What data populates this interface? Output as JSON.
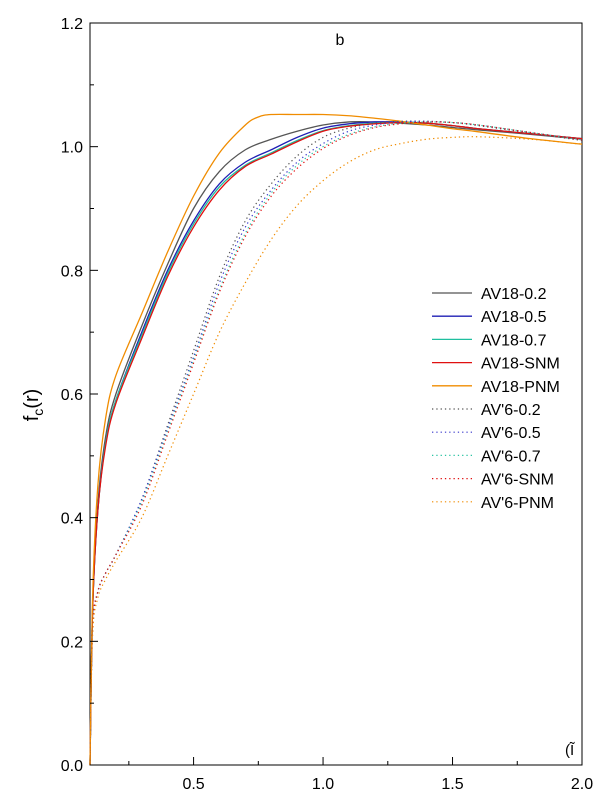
{
  "chart_data": {
    "type": "line",
    "panel_label": "b",
    "xlabel": "(Ĩ",
    "ylabel": "f_c(r)",
    "xlim": [
      0.1,
      2.0
    ],
    "ylim": [
      0.0,
      1.2
    ],
    "x_ticks": [
      0.5,
      1.0,
      1.5,
      2.0
    ],
    "x_tick_labels": [
      "0.5",
      "1.0",
      "1.5",
      "2.0"
    ],
    "y_ticks": [
      0.0,
      0.2,
      0.4,
      0.6,
      0.8,
      1.0,
      1.2
    ],
    "y_tick_labels": [
      "0.0",
      "0.2",
      "0.4",
      "0.6",
      "0.8",
      "1.0",
      "1.2"
    ],
    "legend_position": "center-right",
    "series": [
      {
        "name": "AV18-0.2",
        "color": "#555555",
        "style": "solid",
        "x": [
          0.1,
          0.11,
          0.13,
          0.16,
          0.2,
          0.3,
          0.4,
          0.5,
          0.6,
          0.7,
          0.8,
          0.9,
          1.0,
          1.1,
          1.2,
          1.3,
          1.4,
          1.5,
          1.6,
          1.8,
          2.0
        ],
        "y": [
          0.0,
          0.25,
          0.42,
          0.53,
          0.6,
          0.71,
          0.81,
          0.9,
          0.96,
          0.995,
          1.012,
          1.025,
          1.035,
          1.04,
          1.04,
          1.038,
          1.035,
          1.031,
          1.027,
          1.02,
          1.012
        ]
      },
      {
        "name": "AV18-0.5",
        "color": "#1f1fb4",
        "style": "solid",
        "x": [
          0.1,
          0.11,
          0.13,
          0.16,
          0.2,
          0.3,
          0.4,
          0.5,
          0.6,
          0.7,
          0.8,
          0.9,
          1.0,
          1.1,
          1.2,
          1.3,
          1.4,
          1.5,
          1.6,
          1.8,
          2.0
        ],
        "y": [
          0.0,
          0.25,
          0.41,
          0.52,
          0.59,
          0.7,
          0.8,
          0.88,
          0.94,
          0.975,
          0.995,
          1.015,
          1.03,
          1.037,
          1.04,
          1.04,
          1.038,
          1.034,
          1.029,
          1.021,
          1.013
        ]
      },
      {
        "name": "AV18-0.7",
        "color": "#1fbf9f",
        "style": "solid",
        "x": [
          0.1,
          0.11,
          0.13,
          0.16,
          0.2,
          0.3,
          0.4,
          0.5,
          0.6,
          0.7,
          0.8,
          0.9,
          1.0,
          1.1,
          1.2,
          1.3,
          1.4,
          1.5,
          1.6,
          1.8,
          2.0
        ],
        "y": [
          0.0,
          0.25,
          0.41,
          0.52,
          0.59,
          0.695,
          0.795,
          0.875,
          0.935,
          0.97,
          0.99,
          1.01,
          1.026,
          1.034,
          1.038,
          1.039,
          1.038,
          1.034,
          1.029,
          1.021,
          1.013
        ]
      },
      {
        "name": "AV18-SNM",
        "color": "#e01010",
        "style": "solid",
        "x": [
          0.1,
          0.11,
          0.13,
          0.16,
          0.2,
          0.3,
          0.4,
          0.5,
          0.6,
          0.7,
          0.8,
          0.9,
          1.0,
          1.1,
          1.2,
          1.3,
          1.4,
          1.5,
          1.6,
          1.8,
          2.0
        ],
        "y": [
          0.0,
          0.25,
          0.41,
          0.515,
          0.585,
          0.69,
          0.79,
          0.87,
          0.93,
          0.968,
          0.988,
          1.008,
          1.025,
          1.033,
          1.037,
          1.039,
          1.038,
          1.034,
          1.029,
          1.021,
          1.013
        ]
      },
      {
        "name": "AV18-PNM",
        "color": "#f08c00",
        "style": "solid",
        "x": [
          0.1,
          0.11,
          0.13,
          0.16,
          0.2,
          0.3,
          0.4,
          0.5,
          0.6,
          0.7,
          0.75,
          0.8,
          0.9,
          1.0,
          1.1,
          1.2,
          1.3,
          1.4,
          1.5,
          1.6,
          1.8,
          2.0
        ],
        "y": [
          0.0,
          0.27,
          0.45,
          0.56,
          0.63,
          0.73,
          0.83,
          0.92,
          0.99,
          1.035,
          1.048,
          1.052,
          1.052,
          1.052,
          1.05,
          1.046,
          1.041,
          1.035,
          1.029,
          1.024,
          1.013,
          1.004
        ]
      },
      {
        "name": "AV'6-0.2",
        "color": "#555555",
        "style": "dotted",
        "x": [
          0.1,
          0.11,
          0.13,
          0.16,
          0.2,
          0.3,
          0.4,
          0.5,
          0.6,
          0.7,
          0.8,
          0.9,
          1.0,
          1.1,
          1.2,
          1.3,
          1.4,
          1.5,
          1.6,
          1.8,
          2.0
        ],
        "y": [
          0.0,
          0.22,
          0.28,
          0.31,
          0.34,
          0.43,
          0.55,
          0.67,
          0.79,
          0.88,
          0.94,
          0.985,
          1.015,
          1.03,
          1.038,
          1.041,
          1.041,
          1.039,
          1.034,
          1.022,
          1.01
        ]
      },
      {
        "name": "AV'6-0.5",
        "color": "#3a3acc",
        "style": "dotted",
        "x": [
          0.1,
          0.11,
          0.13,
          0.16,
          0.2,
          0.3,
          0.4,
          0.5,
          0.6,
          0.7,
          0.8,
          0.9,
          1.0,
          1.1,
          1.2,
          1.3,
          1.4,
          1.5,
          1.6,
          1.8,
          2.0
        ],
        "y": [
          0.0,
          0.22,
          0.28,
          0.31,
          0.34,
          0.43,
          0.545,
          0.66,
          0.78,
          0.87,
          0.93,
          0.975,
          1.005,
          1.025,
          1.035,
          1.04,
          1.041,
          1.039,
          1.035,
          1.023,
          1.011
        ]
      },
      {
        "name": "AV'6-0.7",
        "color": "#2ec4a4",
        "style": "dotted",
        "x": [
          0.1,
          0.11,
          0.13,
          0.16,
          0.2,
          0.3,
          0.4,
          0.5,
          0.6,
          0.7,
          0.8,
          0.9,
          1.0,
          1.1,
          1.2,
          1.3,
          1.4,
          1.5,
          1.6,
          1.8,
          2.0
        ],
        "y": [
          0.0,
          0.22,
          0.28,
          0.31,
          0.34,
          0.425,
          0.54,
          0.655,
          0.77,
          0.86,
          0.925,
          0.97,
          1.0,
          1.02,
          1.032,
          1.038,
          1.04,
          1.039,
          1.035,
          1.023,
          1.011
        ]
      },
      {
        "name": "AV'6-SNM",
        "color": "#e01010",
        "style": "dotted",
        "x": [
          0.1,
          0.11,
          0.13,
          0.16,
          0.2,
          0.3,
          0.4,
          0.5,
          0.6,
          0.7,
          0.8,
          0.9,
          1.0,
          1.1,
          1.2,
          1.3,
          1.4,
          1.5,
          1.6,
          1.8,
          2.0
        ],
        "y": [
          0.0,
          0.22,
          0.28,
          0.31,
          0.34,
          0.42,
          0.535,
          0.65,
          0.765,
          0.855,
          0.92,
          0.965,
          0.997,
          1.018,
          1.031,
          1.037,
          1.04,
          1.039,
          1.035,
          1.023,
          1.011
        ]
      },
      {
        "name": "AV'6-PNM",
        "color": "#f08c00",
        "style": "dotted",
        "x": [
          0.1,
          0.11,
          0.13,
          0.16,
          0.2,
          0.3,
          0.4,
          0.5,
          0.6,
          0.7,
          0.8,
          0.9,
          1.0,
          1.1,
          1.2,
          1.3,
          1.4,
          1.5,
          1.6,
          1.8,
          2.0
        ],
        "y": [
          0.0,
          0.21,
          0.27,
          0.3,
          0.33,
          0.4,
          0.5,
          0.6,
          0.7,
          0.78,
          0.85,
          0.905,
          0.945,
          0.975,
          0.995,
          1.005,
          1.012,
          1.015,
          1.016,
          1.012,
          1.004
        ]
      }
    ]
  }
}
